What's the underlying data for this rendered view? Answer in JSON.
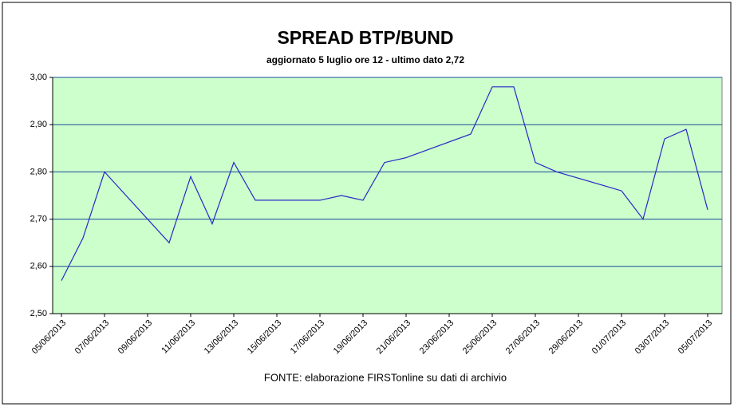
{
  "chart_data": {
    "type": "line",
    "title": "SPREAD BTP/BUND",
    "subtitle": "aggiornato 5 luglio ore 12 - ultimo dato 2,72",
    "source": "FONTE: elaborazione FIRSTonline su dati di archivio",
    "x": [
      "05/06/2013",
      "06/06/2013",
      "07/06/2013",
      "10/06/2013",
      "11/06/2013",
      "12/06/2013",
      "13/06/2013",
      "14/06/2013",
      "17/06/2013",
      "18/06/2013",
      "19/06/2013",
      "20/06/2013",
      "21/06/2013",
      "24/06/2013",
      "25/06/2013",
      "26/06/2013",
      "27/06/2013",
      "28/06/2013",
      "01/07/2013",
      "02/07/2013",
      "03/07/2013",
      "04/07/2013",
      "05/07/2013"
    ],
    "series": [
      {
        "color": "#2828c8",
        "values": [
          2.57,
          2.66,
          2.8,
          2.65,
          2.79,
          2.69,
          2.82,
          2.74,
          2.74,
          2.75,
          2.74,
          2.82,
          2.83,
          2.88,
          2.98,
          2.98,
          2.82,
          2.8,
          2.76,
          2.7,
          2.87,
          2.89,
          2.72
        ]
      }
    ],
    "xlim": [
      "05/06/2013",
      "05/07/2013"
    ],
    "xticks": [
      "05/06/2013",
      "07/06/2013",
      "09/06/2013",
      "11/06/2013",
      "13/06/2013",
      "15/06/2013",
      "17/06/2013",
      "19/06/2013",
      "21/06/2013",
      "23/06/2013",
      "25/06/2013",
      "27/06/2013",
      "29/06/2013",
      "01/07/2013",
      "03/07/2013",
      "05/07/2013"
    ],
    "ylim": [
      2.5,
      3.0
    ],
    "yticks": [
      {
        "value": 2.5,
        "label": "2,50"
      },
      {
        "value": 2.6,
        "label": "2,60"
      },
      {
        "value": 2.7,
        "label": "2,70"
      },
      {
        "value": 2.8,
        "label": "2,80"
      },
      {
        "value": 2.9,
        "label": "2,90"
      },
      {
        "value": 3.0,
        "label": "3,00"
      }
    ],
    "grid": true,
    "plot_background": "#ccffcc"
  }
}
